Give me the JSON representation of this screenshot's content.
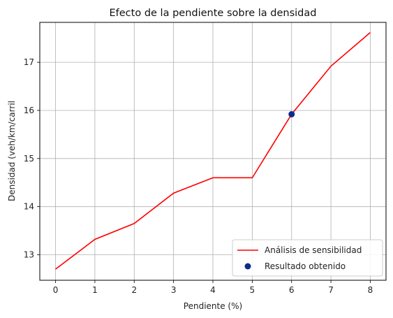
{
  "chart_data": {
    "type": "line",
    "title": "Efecto de la pendiente sobre la densidad",
    "xlabel": "Pendiente (%)",
    "ylabel": "Densidad (veh/km/carril",
    "x": [
      0,
      1,
      2,
      3,
      4,
      5,
      6,
      7,
      8
    ],
    "xticks": [
      0,
      1,
      2,
      3,
      4,
      5,
      6,
      7,
      8
    ],
    "yticks": [
      13,
      14,
      15,
      16,
      17
    ],
    "xlim": [
      -0.4,
      8.4
    ],
    "ylim": [
      12.47,
      17.83
    ],
    "grid": true,
    "legend_position": "bottom-right",
    "series": [
      {
        "name": "Análisis de sensibilidad",
        "kind": "line",
        "color": "#ff0000",
        "values": [
          12.7,
          13.32,
          13.65,
          14.28,
          14.6,
          14.6,
          15.92,
          16.92,
          17.62
        ]
      },
      {
        "name": "Resultado obtenido",
        "kind": "scatter",
        "color": "#0d2b8c",
        "points": [
          {
            "x": 6,
            "y": 15.92
          }
        ]
      }
    ]
  }
}
